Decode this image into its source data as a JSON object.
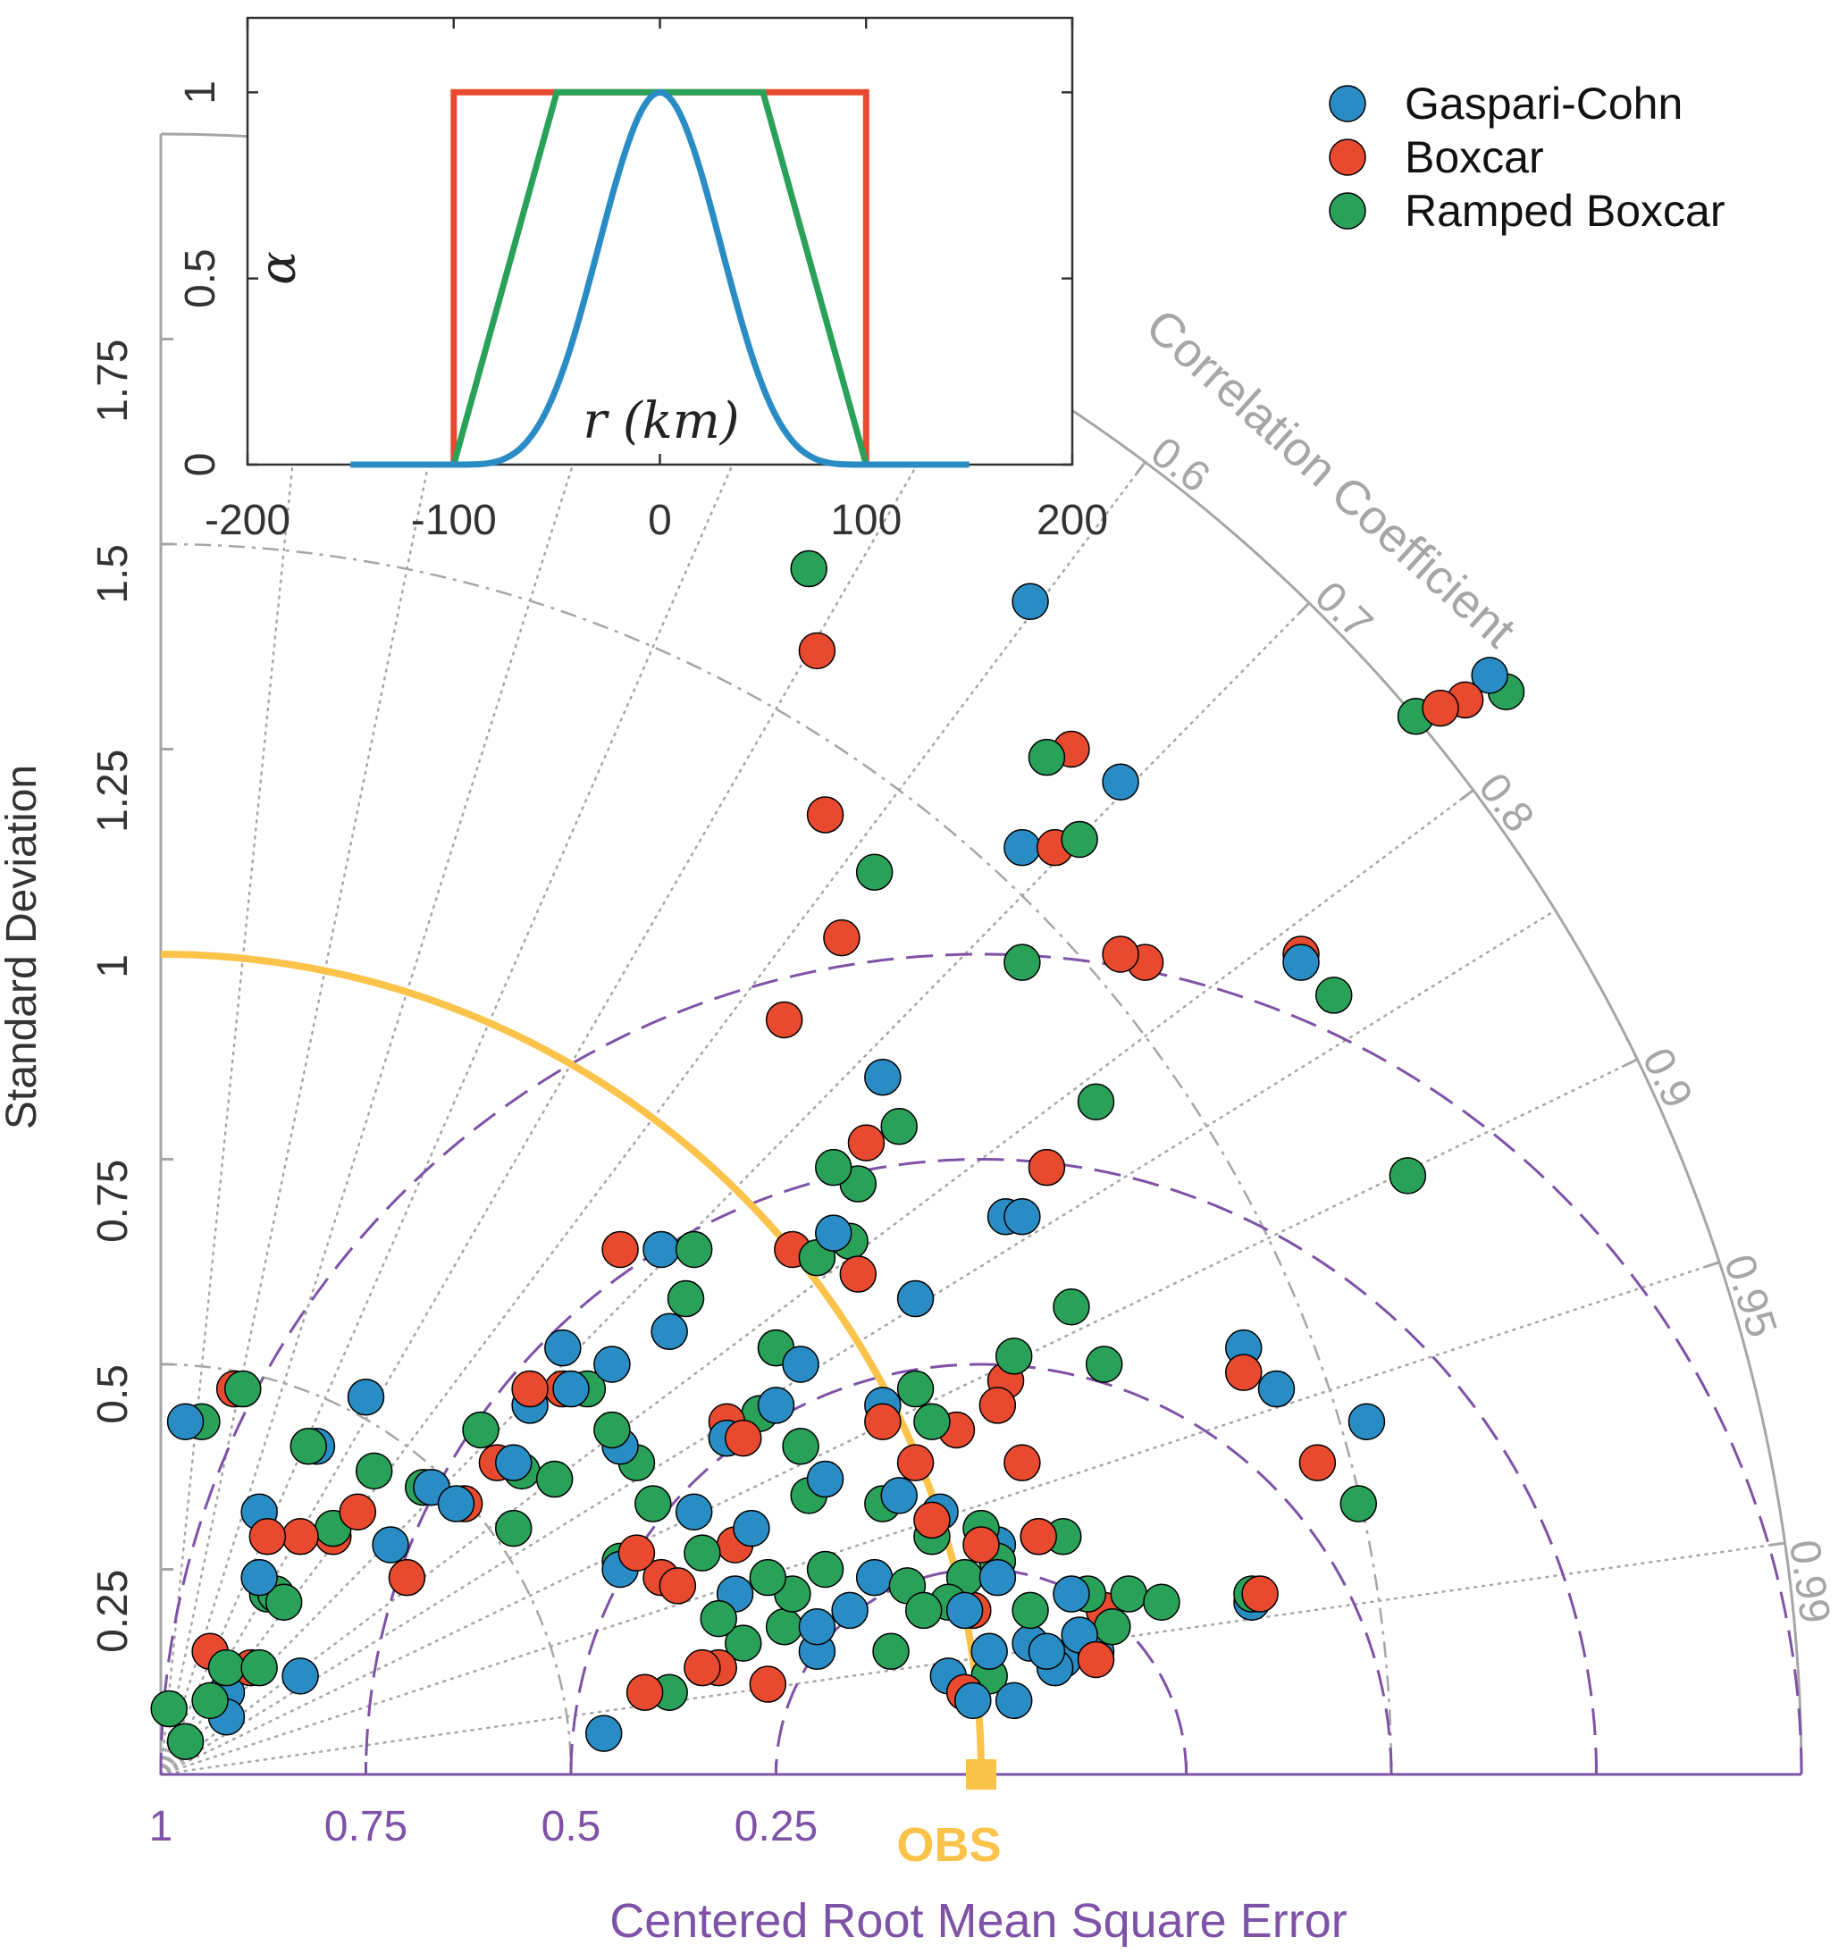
{
  "chart_data": [
    {
      "type": "scatter",
      "subtype": "taylor-diagram",
      "ylabel": "Standard Deviation",
      "xlabel": "Centered Root Mean Square Error",
      "arc_label": "Correlation Coefficient",
      "ref_label": "OBS",
      "ref_std": 1,
      "max_std": 2,
      "std_ticks": [
        0.25,
        0.5,
        0.75,
        1,
        1.25,
        1.5,
        1.75
      ],
      "std_tick_labels": [
        "0.25",
        "0.5",
        "0.75",
        "1",
        "1.25",
        "1.5",
        "1.75"
      ],
      "std_gray_arcs": [
        0.5,
        1.5
      ],
      "corr_ticks": [
        0.6,
        0.7,
        0.8,
        0.9,
        0.95,
        0.99
      ],
      "corr_tick_labels": [
        "0.6",
        "0.7",
        "0.8",
        "0.9",
        "0.95",
        "0.99"
      ],
      "corr_dotted_lines": [
        0,
        0.1,
        0.2,
        0.3,
        0.4,
        0.5,
        0.6,
        0.7,
        0.8,
        0.85,
        0.9,
        0.95,
        0.99
      ],
      "rmse_circles": [
        0.25,
        0.5,
        0.75,
        1.0
      ],
      "rmse_tick_values": [
        1,
        0.75,
        0.5,
        0.25
      ],
      "rmse_tick_labels": [
        "1",
        "0.75",
        "0.5",
        "0.25"
      ],
      "colors": {
        "Gaspari-Cohn": "#2a8cc4",
        "Boxcar": "#e84a30",
        "Ramped Boxcar": "#2aa159",
        "obs": "#fbc34a",
        "rmse": "#7e52a6",
        "gray": "#a6a6a6"
      },
      "series": [
        {
          "name": "Gaspari-Cohn",
          "points": [
            [
              0.03,
              0.43
            ],
            [
              0.08,
              0.1
            ],
            [
              0.08,
              0.07
            ],
            [
              0.12,
              0.32
            ],
            [
              0.12,
              0.24
            ],
            [
              0.17,
              0.12
            ],
            [
              0.19,
              0.4
            ],
            [
              0.25,
              0.46
            ],
            [
              0.28,
              0.28
            ],
            [
              0.33,
              0.35
            ],
            [
              0.36,
              0.33
            ],
            [
              0.43,
              0.38
            ],
            [
              0.45,
              0.45
            ],
            [
              0.49,
              0.52
            ],
            [
              0.5,
              0.47
            ],
            [
              0.54,
              0.05
            ],
            [
              0.55,
              0.5
            ],
            [
              0.56,
              0.4
            ],
            [
              0.56,
              0.25
            ],
            [
              0.61,
              0.64
            ],
            [
              0.62,
              0.54
            ],
            [
              0.65,
              0.32
            ],
            [
              0.69,
              0.41
            ],
            [
              0.7,
              0.22
            ],
            [
              0.72,
              0.3
            ],
            [
              0.75,
              0.45
            ],
            [
              0.78,
              0.5
            ],
            [
              0.8,
              0.15
            ],
            [
              0.81,
              0.36
            ],
            [
              0.82,
              0.66
            ],
            [
              0.8,
              0.18
            ],
            [
              0.84,
              0.2
            ],
            [
              0.87,
              0.24
            ],
            [
              0.88,
              0.85
            ],
            [
              0.88,
              0.45
            ],
            [
              0.9,
              0.34
            ],
            [
              0.92,
              0.58
            ],
            [
              0.95,
              0.32
            ],
            [
              0.96,
              0.12
            ],
            [
              0.98,
              0.2
            ],
            [
              0.99,
              0.09
            ],
            [
              1.01,
              0.15
            ],
            [
              1.02,
              0.24
            ],
            [
              1.04,
              0.09
            ],
            [
              1.06,
              0.16
            ],
            [
              1.02,
              0.28
            ],
            [
              1.03,
              0.68
            ],
            [
              1.05,
              0.68
            ],
            [
              1.05,
              1.13
            ],
            [
              1.06,
              1.43
            ],
            [
              1.07,
              0.29
            ],
            [
              1.08,
              0.15
            ],
            [
              1.09,
              0.13
            ],
            [
              1.1,
              0.14
            ],
            [
              1.11,
              0.22
            ],
            [
              1.12,
              0.17
            ],
            [
              1.14,
              0.15
            ],
            [
              1.17,
              1.21
            ],
            [
              1.32,
              0.52
            ],
            [
              1.33,
              0.21
            ],
            [
              1.36,
              0.47
            ],
            [
              1.39,
              0.99
            ],
            [
              1.47,
              0.43
            ],
            [
              1.62,
              1.34
            ]
          ]
        },
        {
          "name": "Boxcar",
          "points": [
            [
              0.06,
              0.15
            ],
            [
              0.09,
              0.47
            ],
            [
              0.11,
              0.13
            ],
            [
              0.13,
              0.29
            ],
            [
              0.17,
              0.29
            ],
            [
              0.21,
              0.29
            ],
            [
              0.24,
              0.32
            ],
            [
              0.3,
              0.24
            ],
            [
              0.37,
              0.33
            ],
            [
              0.41,
              0.38
            ],
            [
              0.45,
              0.47
            ],
            [
              0.49,
              0.47
            ],
            [
              0.56,
              0.64
            ],
            [
              0.58,
              0.27
            ],
            [
              0.59,
              0.1
            ],
            [
              0.61,
              0.24
            ],
            [
              0.63,
              0.23
            ],
            [
              0.66,
              0.13
            ],
            [
              0.68,
              0.13
            ],
            [
              0.69,
              0.43
            ],
            [
              0.7,
              0.28
            ],
            [
              0.71,
              0.41
            ],
            [
              0.74,
              0.11
            ],
            [
              0.75,
              0.52
            ],
            [
              0.76,
              0.92
            ],
            [
              0.77,
              0.64
            ],
            [
              0.8,
              1.37
            ],
            [
              0.81,
              1.17
            ],
            [
              0.83,
              1.02
            ],
            [
              0.85,
              0.61
            ],
            [
              0.86,
              0.77
            ],
            [
              0.88,
              0.43
            ],
            [
              0.92,
              0.38
            ],
            [
              0.94,
              0.31
            ],
            [
              0.97,
              0.42
            ],
            [
              0.98,
              0.1
            ],
            [
              0.99,
              0.2
            ],
            [
              1.0,
              0.28
            ],
            [
              1.02,
              0.45
            ],
            [
              1.03,
              0.48
            ],
            [
              1.05,
              0.38
            ],
            [
              1.07,
              0.29
            ],
            [
              1.08,
              0.74
            ],
            [
              1.09,
              1.13
            ],
            [
              1.11,
              1.25
            ],
            [
              1.14,
              0.14
            ],
            [
              1.15,
              0.2
            ],
            [
              1.17,
              1.0
            ],
            [
              1.2,
              0.99
            ],
            [
              1.32,
              0.49
            ],
            [
              1.34,
              0.22
            ],
            [
              1.39,
              1.0
            ],
            [
              1.41,
              0.38
            ],
            [
              1.56,
              1.3
            ],
            [
              1.59,
              1.31
            ]
          ]
        },
        {
          "name": "Ramped Boxcar",
          "points": [
            [
              0.01,
              0.08
            ],
            [
              0.03,
              0.04
            ],
            [
              0.05,
              0.43
            ],
            [
              0.06,
              0.09
            ],
            [
              0.08,
              0.13
            ],
            [
              0.1,
              0.47
            ],
            [
              0.12,
              0.13
            ],
            [
              0.13,
              0.22
            ],
            [
              0.14,
              0.22
            ],
            [
              0.15,
              0.21
            ],
            [
              0.18,
              0.4
            ],
            [
              0.21,
              0.3
            ],
            [
              0.26,
              0.37
            ],
            [
              0.32,
              0.35
            ],
            [
              0.39,
              0.42
            ],
            [
              0.43,
              0.3
            ],
            [
              0.44,
              0.37
            ],
            [
              0.48,
              0.36
            ],
            [
              0.52,
              0.47
            ],
            [
              0.55,
              0.42
            ],
            [
              0.56,
              0.26
            ],
            [
              0.58,
              0.38
            ],
            [
              0.6,
              0.33
            ],
            [
              0.62,
              0.1
            ],
            [
              0.64,
              0.58
            ],
            [
              0.65,
              0.64
            ],
            [
              0.66,
              0.27
            ],
            [
              0.68,
              0.19
            ],
            [
              0.69,
              0.41
            ],
            [
              0.71,
              0.16
            ],
            [
              0.73,
              0.44
            ],
            [
              0.74,
              0.24
            ],
            [
              0.75,
              0.52
            ],
            [
              0.76,
              0.18
            ],
            [
              0.77,
              0.22
            ],
            [
              0.78,
              0.4
            ],
            [
              0.79,
              0.34
            ],
            [
              0.8,
              0.63
            ],
            [
              0.81,
              0.25
            ],
            [
              0.82,
              0.74
            ],
            [
              0.84,
              0.65
            ],
            [
              0.85,
              0.72
            ],
            [
              0.87,
              1.1
            ],
            [
              0.88,
              0.33
            ],
            [
              0.89,
              0.15
            ],
            [
              0.9,
              0.79
            ],
            [
              0.91,
              0.23
            ],
            [
              0.92,
              0.47
            ],
            [
              0.93,
              0.2
            ],
            [
              0.94,
              0.29
            ],
            [
              0.94,
              0.43
            ],
            [
              0.96,
              0.21
            ],
            [
              0.98,
              0.24
            ],
            [
              1.0,
              0.3
            ],
            [
              1.01,
              0.12
            ],
            [
              1.02,
              0.26
            ],
            [
              1.04,
              0.51
            ],
            [
              1.05,
              0.99
            ],
            [
              1.06,
              0.2
            ],
            [
              1.08,
              1.24
            ],
            [
              1.1,
              0.29
            ],
            [
              1.11,
              0.57
            ],
            [
              1.12,
              1.14
            ],
            [
              1.13,
              0.22
            ],
            [
              1.14,
              0.82
            ],
            [
              1.15,
              0.5
            ],
            [
              1.16,
              0.18
            ],
            [
              1.18,
              0.22
            ],
            [
              1.22,
              0.21
            ],
            [
              1.33,
              0.22
            ],
            [
              1.43,
              0.95
            ],
            [
              1.46,
              0.33
            ],
            [
              1.52,
              0.73
            ],
            [
              1.53,
              1.29
            ],
            [
              1.64,
              1.32
            ],
            [
              0.79,
              1.47
            ]
          ]
        }
      ],
      "legend": {
        "placement": "top-right",
        "entries": [
          "Gaspari-Cohn",
          "Boxcar",
          "Ramped Boxcar"
        ]
      }
    },
    {
      "type": "line",
      "xlabel": "r (km)",
      "ylabel": "α",
      "xlim": [
        -200,
        200
      ],
      "ylim": [
        0,
        1.2
      ],
      "xticks": [
        -200,
        -100,
        0,
        100,
        200
      ],
      "xtick_labels": [
        "-200",
        "-100",
        "0",
        "100",
        "200"
      ],
      "yticks": [
        0,
        0.5,
        1
      ],
      "ytick_labels": [
        "0",
        "0.5",
        "1"
      ],
      "series": [
        {
          "name": "Boxcar",
          "x": [
            -150,
            -100,
            -100,
            100,
            100,
            150
          ],
          "y": [
            0,
            0,
            1,
            1,
            0,
            0
          ]
        },
        {
          "name": "Ramped Boxcar",
          "x": [
            -150,
            -100,
            -50,
            50,
            100,
            150
          ],
          "y": [
            0,
            0,
            1,
            1,
            0,
            0
          ]
        },
        {
          "name": "Gaspari-Cohn",
          "x": [
            -150,
            -100,
            -90,
            -80,
            -70,
            -60,
            -50,
            -40,
            -30,
            -20,
            -10,
            0,
            10,
            20,
            30,
            40,
            50,
            60,
            70,
            80,
            90,
            100,
            150
          ],
          "y": [
            0,
            0,
            0.0016,
            0.0131,
            0.0431,
            0.0983,
            0.1823,
            0.2958,
            0.437,
            0.5992,
            0.7703,
            1,
            0.7703,
            0.5992,
            0.437,
            0.2958,
            0.1823,
            0.0983,
            0.0431,
            0.0131,
            0.0016,
            0,
            0
          ]
        }
      ],
      "inset_placement": "top-left"
    }
  ]
}
